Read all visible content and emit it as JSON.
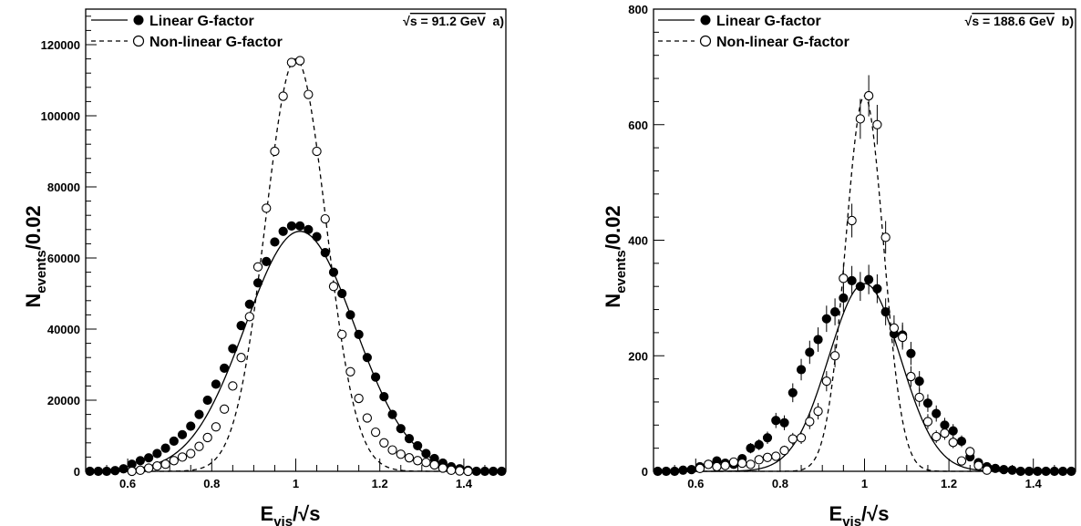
{
  "chart_data": [
    {
      "type": "scatter",
      "panel_label": "a)",
      "energy_label": "s = 91.2 GeV",
      "energy_root": "√",
      "xlabel": {
        "main": "E",
        "sub": "vis",
        "sep": "/",
        "root": "√",
        "tail": "s"
      },
      "ylabel": {
        "main": "N",
        "sub": "events",
        "tail": "/0.02"
      },
      "xlim": [
        0.5,
        1.5
      ],
      "ylim": [
        0,
        130000
      ],
      "x_ticks": [
        "0.6",
        "0.8",
        "1",
        "1.2",
        "1.4"
      ],
      "x_tick_values": [
        0.6,
        0.8,
        1.0,
        1.2,
        1.4
      ],
      "y_ticks": [
        "0",
        "20000",
        "40000",
        "60000",
        "80000",
        "100000",
        "120000"
      ],
      "y_tick_values": [
        0,
        20000,
        40000,
        60000,
        80000,
        100000,
        120000
      ],
      "legend": [
        {
          "name": "Linear G-factor",
          "marker": "filled-circle",
          "line": "solid"
        },
        {
          "name": "Non-linear G-factor",
          "marker": "open-circle",
          "line": "dashed"
        }
      ],
      "series": [
        {
          "name": "Linear G-factor",
          "fit": {
            "mean": 1.01,
            "sigma": 0.13,
            "amplitude": 67500
          },
          "x": [
            0.51,
            0.53,
            0.55,
            0.57,
            0.59,
            0.61,
            0.63,
            0.65,
            0.67,
            0.69,
            0.71,
            0.73,
            0.75,
            0.77,
            0.79,
            0.81,
            0.83,
            0.85,
            0.87,
            0.89,
            0.91,
            0.93,
            0.95,
            0.97,
            0.99,
            1.01,
            1.03,
            1.05,
            1.07,
            1.09,
            1.11,
            1.13,
            1.15,
            1.17,
            1.19,
            1.21,
            1.23,
            1.25,
            1.27,
            1.29,
            1.31,
            1.33,
            1.35,
            1.37,
            1.39,
            1.41,
            1.43,
            1.45,
            1.47,
            1.49
          ],
          "y": [
            0,
            0,
            0,
            200,
            700,
            2000,
            3000,
            3800,
            5000,
            6500,
            8500,
            10300,
            12700,
            16000,
            20000,
            24500,
            29000,
            34500,
            41000,
            47000,
            53000,
            59000,
            64500,
            67500,
            69000,
            69000,
            68000,
            66000,
            61500,
            56000,
            50000,
            44000,
            38500,
            32000,
            26500,
            21000,
            16000,
            12000,
            9200,
            7200,
            5000,
            3600,
            2300,
            1300,
            700,
            300,
            0,
            0,
            0,
            0
          ]
        },
        {
          "name": "Non-linear G-factor",
          "fit": {
            "mean": 1.0,
            "sigma": 0.072,
            "amplitude": 116000
          },
          "x": [
            0.61,
            0.63,
            0.65,
            0.67,
            0.69,
            0.71,
            0.73,
            0.75,
            0.77,
            0.79,
            0.81,
            0.83,
            0.85,
            0.87,
            0.89,
            0.91,
            0.93,
            0.95,
            0.97,
            0.99,
            1.01,
            1.03,
            1.05,
            1.07,
            1.09,
            1.11,
            1.13,
            1.15,
            1.17,
            1.19,
            1.21,
            1.23,
            1.25,
            1.27,
            1.29,
            1.31,
            1.33,
            1.35,
            1.37,
            1.39,
            1.41
          ],
          "y": [
            0,
            300,
            900,
            1500,
            2000,
            3000,
            4000,
            5000,
            7000,
            9500,
            12500,
            17500,
            24000,
            32000,
            43500,
            57500,
            74000,
            90000,
            105500,
            115000,
            115500,
            106000,
            90000,
            71000,
            52000,
            38500,
            28000,
            20500,
            15000,
            11000,
            8000,
            6000,
            4800,
            3800,
            3000,
            2500,
            1800,
            900,
            300,
            100,
            0
          ]
        }
      ]
    },
    {
      "type": "scatter",
      "panel_label": "b)",
      "energy_label": "s = 188.6 GeV",
      "energy_root": "√",
      "xlabel": {
        "main": "E",
        "sub": "vis",
        "sep": "/",
        "root": "√",
        "tail": "s"
      },
      "ylabel": {
        "main": "N",
        "sub": "events",
        "tail": "/0.02"
      },
      "xlim": [
        0.5,
        1.5
      ],
      "ylim": [
        0,
        800
      ],
      "x_ticks": [
        "0.6",
        "0.8",
        "1",
        "1.2",
        "1.4"
      ],
      "x_tick_values": [
        0.6,
        0.8,
        1.0,
        1.2,
        1.4
      ],
      "y_ticks": [
        "0",
        "200",
        "400",
        "600",
        "800"
      ],
      "y_tick_values": [
        0,
        200,
        400,
        600,
        800
      ],
      "legend": [
        {
          "name": "Linear G-factor",
          "marker": "filled-circle",
          "line": "solid"
        },
        {
          "name": "Non-linear G-factor",
          "marker": "open-circle",
          "line": "dashed"
        }
      ],
      "series": [
        {
          "name": "Linear G-factor",
          "fit": {
            "mean": 1.0,
            "sigma": 0.085,
            "amplitude": 325
          },
          "x": [
            0.51,
            0.53,
            0.55,
            0.57,
            0.59,
            0.61,
            0.63,
            0.65,
            0.67,
            0.69,
            0.71,
            0.73,
            0.75,
            0.77,
            0.79,
            0.81,
            0.83,
            0.85,
            0.87,
            0.89,
            0.91,
            0.93,
            0.95,
            0.97,
            0.99,
            1.01,
            1.03,
            1.05,
            1.07,
            1.09,
            1.11,
            1.13,
            1.15,
            1.17,
            1.19,
            1.21,
            1.23,
            1.25,
            1.27,
            1.29,
            1.31,
            1.33,
            1.35,
            1.37,
            1.39,
            1.41,
            1.43,
            1.45,
            1.47,
            1.49
          ],
          "y": [
            0,
            0,
            0,
            2,
            3,
            8,
            12,
            18,
            14,
            12,
            22,
            40,
            46,
            58,
            88,
            84,
            136,
            176,
            206,
            228,
            264,
            276,
            300,
            330,
            320,
            332,
            316,
            276,
            238,
            236,
            204,
            156,
            118,
            100,
            80,
            70,
            52,
            25,
            15,
            8,
            5,
            3,
            2,
            0,
            0,
            0,
            0,
            0,
            0,
            0
          ]
        },
        {
          "name": "Non-linear G-factor",
          "fit": {
            "mean": 1.0,
            "sigma": 0.045,
            "amplitude": 650
          },
          "x": [
            0.61,
            0.63,
            0.65,
            0.67,
            0.69,
            0.71,
            0.73,
            0.75,
            0.77,
            0.79,
            0.81,
            0.83,
            0.85,
            0.87,
            0.89,
            0.91,
            0.93,
            0.95,
            0.97,
            0.99,
            1.01,
            1.03,
            1.05,
            1.07,
            1.09,
            1.11,
            1.13,
            1.15,
            1.17,
            1.19,
            1.21,
            1.23,
            1.25,
            1.27,
            1.29
          ],
          "y": [
            5,
            12,
            8,
            10,
            16,
            14,
            12,
            20,
            24,
            26,
            36,
            56,
            58,
            86,
            104,
            156,
            200,
            334,
            434,
            610,
            650,
            600,
            405,
            248,
            232,
            164,
            128,
            86,
            60,
            66,
            50,
            18,
            34,
            10,
            2
          ]
        }
      ]
    }
  ]
}
